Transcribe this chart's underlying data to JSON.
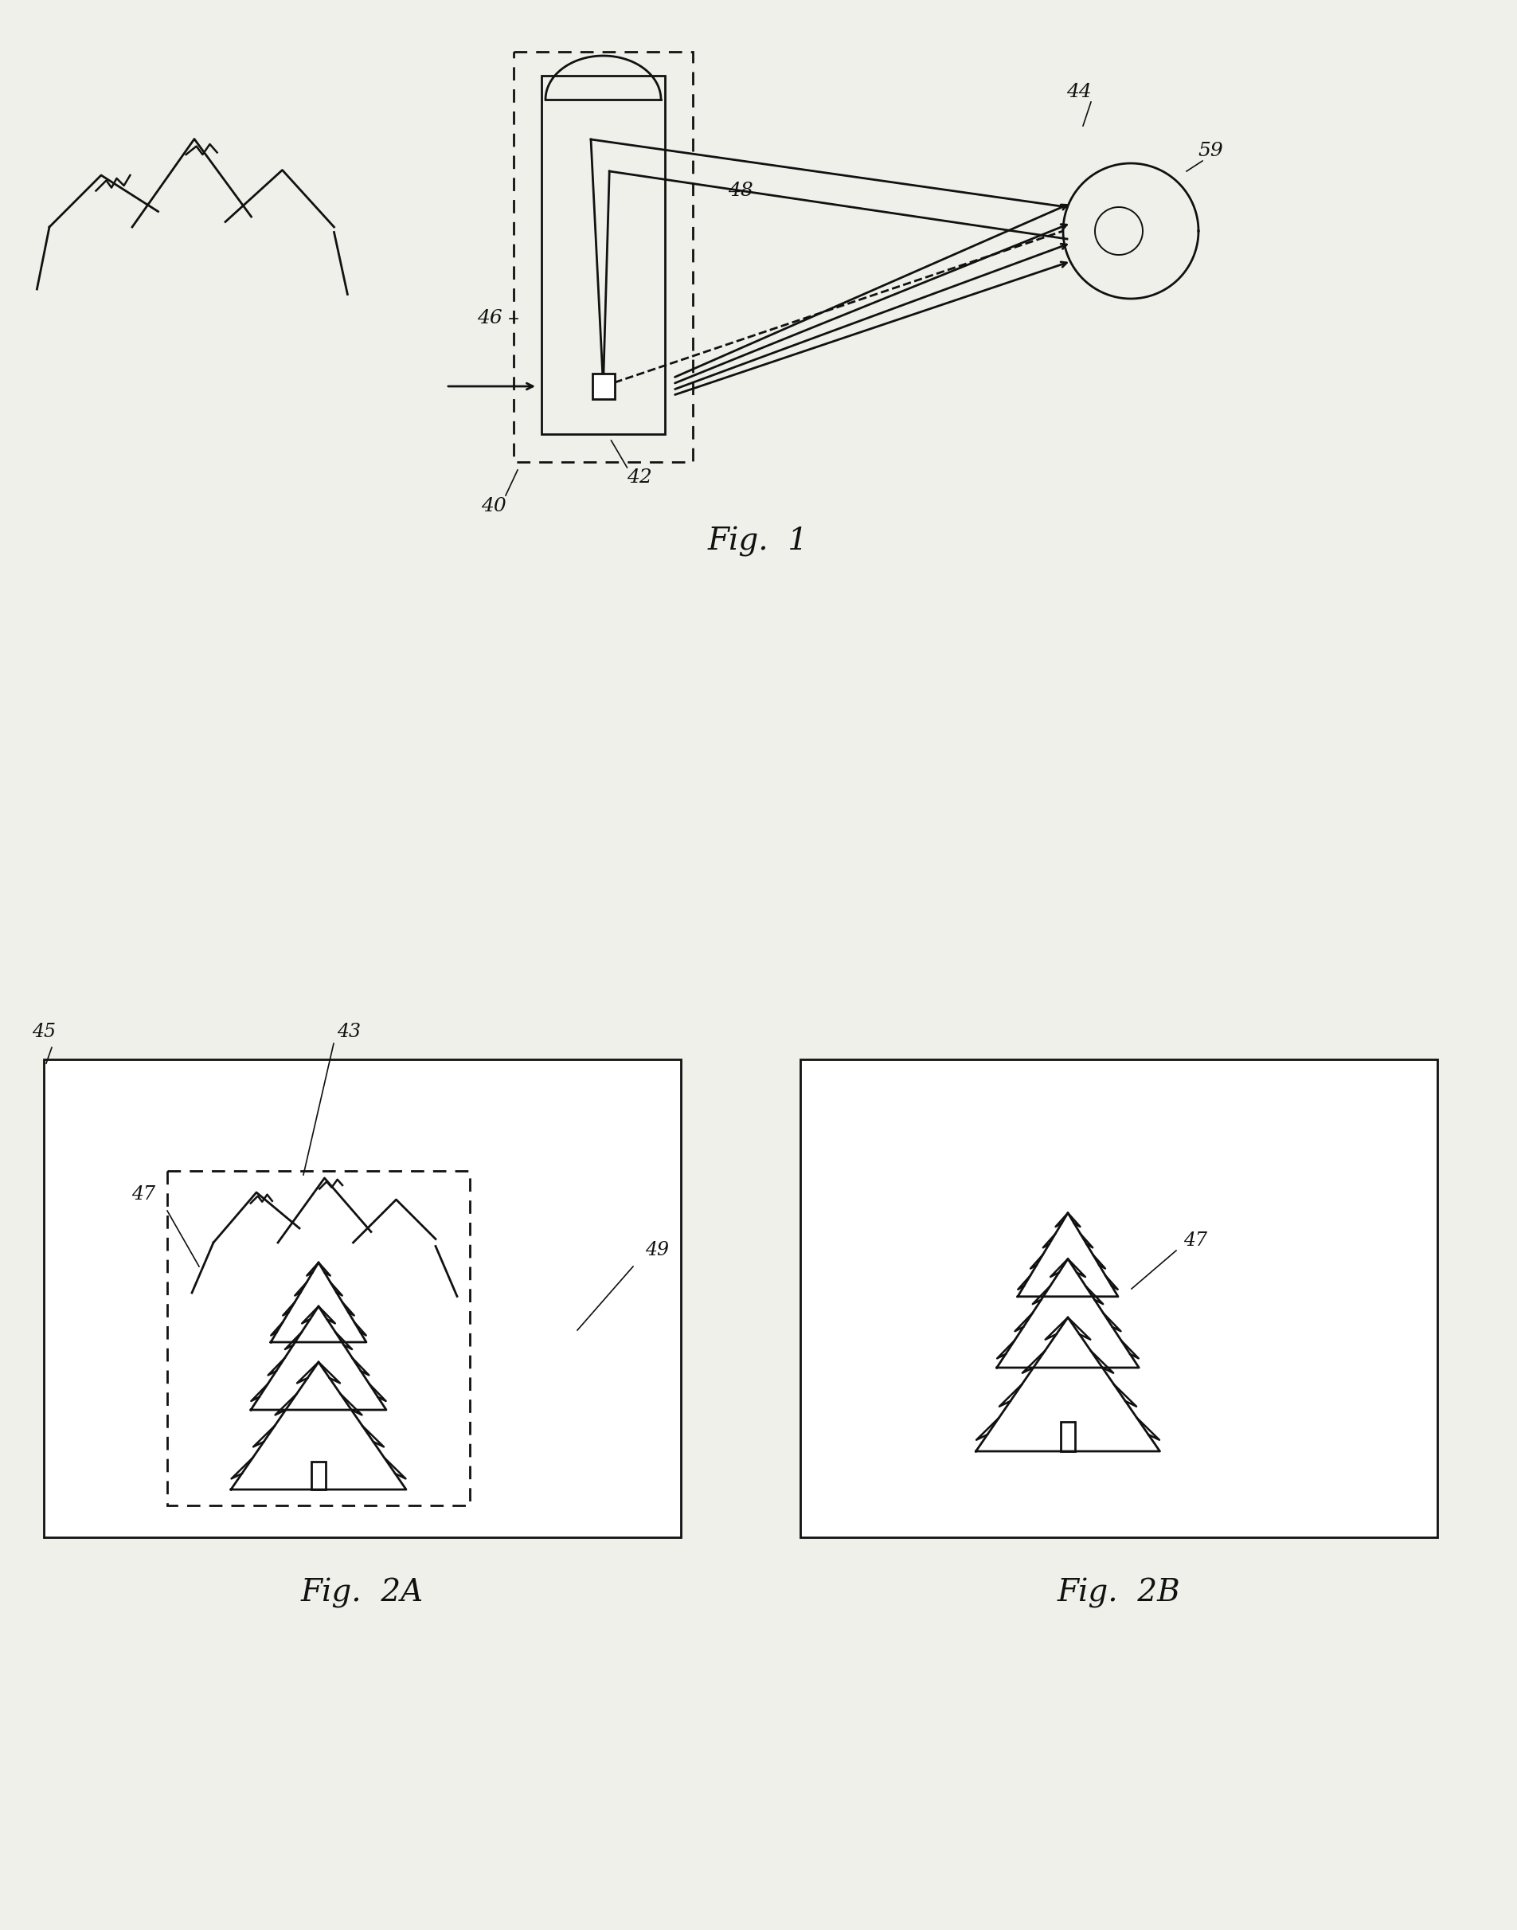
{
  "bg_color": "#f0f0eb",
  "line_color": "#111111",
  "fig_width": 19.05,
  "fig_height": 24.23,
  "fig1_label": "Fig.  1",
  "fig2a_label": "Fig.  2A",
  "fig2b_label": "Fig.  2B"
}
